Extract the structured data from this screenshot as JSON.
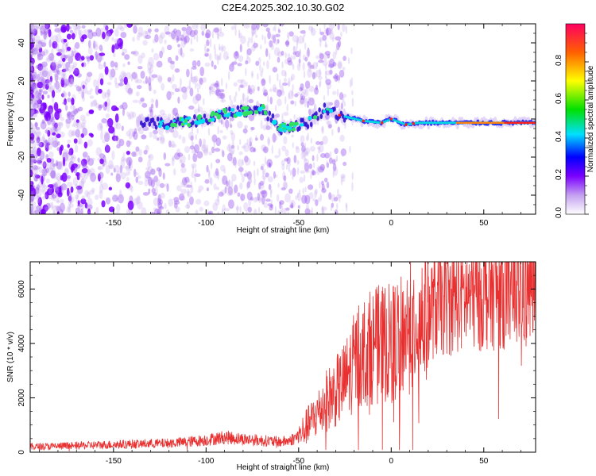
{
  "chart_data": [
    {
      "type": "heatmap",
      "title": "C2E4.2025.302.10.30.G02",
      "xlabel": "Height of straight line (km)",
      "ylabel": "Frequency (Hz)",
      "xlim": [
        -195,
        78
      ],
      "ylim": [
        -50,
        50
      ],
      "xticks": [
        -150,
        -100,
        -50,
        0,
        50
      ],
      "yticks": [
        -40,
        -20,
        0,
        20,
        40
      ],
      "colorbar": {
        "label": "Normalized spectral amplitude",
        "range": [
          0,
          1
        ],
        "ticks": [
          "0.0",
          "0.2",
          "0.4",
          "0.6",
          "0.8"
        ]
      },
      "ridge": [
        {
          "x": -135,
          "y": -1
        },
        {
          "x": -120,
          "y": -3
        },
        {
          "x": -100,
          "y": 0
        },
        {
          "x": -90,
          "y": 3
        },
        {
          "x": -80,
          "y": 4
        },
        {
          "x": -70,
          "y": 6
        },
        {
          "x": -60,
          "y": -5
        },
        {
          "x": -45,
          "y": -2
        },
        {
          "x": -35,
          "y": 6
        },
        {
          "x": -28,
          "y": 2
        },
        {
          "x": -15,
          "y": -1
        },
        {
          "x": -5,
          "y": -2
        },
        {
          "x": 0,
          "y": 0
        },
        {
          "x": 8,
          "y": -3
        },
        {
          "x": 15,
          "y": -2
        },
        {
          "x": 30,
          "y": -2
        },
        {
          "x": 50,
          "y": -2
        },
        {
          "x": 78,
          "y": -2
        }
      ]
    },
    {
      "type": "line",
      "title": "",
      "xlabel": "Height of straight line (km)",
      "ylabel": "SNR (10 * v/v)",
      "xlim": [
        -195,
        78
      ],
      "ylim": [
        0,
        7000
      ],
      "xticks": [
        -150,
        -100,
        -50,
        0,
        50
      ],
      "yticks": [
        0,
        2000,
        4000,
        6000
      ],
      "series": [
        {
          "name": "SNR",
          "color": "#e83030",
          "x": [
            -195,
            -180,
            -160,
            -140,
            -120,
            -110,
            -100,
            -90,
            -80,
            -70,
            -60,
            -55,
            -50,
            -45,
            -40,
            -35,
            -30,
            -25,
            -20,
            -15,
            -10,
            -5,
            0,
            5,
            10,
            15,
            20,
            25,
            30,
            40,
            50,
            60,
            70,
            78
          ],
          "y": [
            200,
            220,
            260,
            300,
            330,
            380,
            450,
            550,
            480,
            430,
            380,
            420,
            600,
            1000,
            1400,
            1900,
            2200,
            2600,
            3300,
            3700,
            3900,
            4000,
            4000,
            4300,
            4600,
            4900,
            5200,
            5400,
            5500,
            5700,
            5800,
            5900,
            6000,
            6000
          ]
        }
      ]
    }
  ]
}
